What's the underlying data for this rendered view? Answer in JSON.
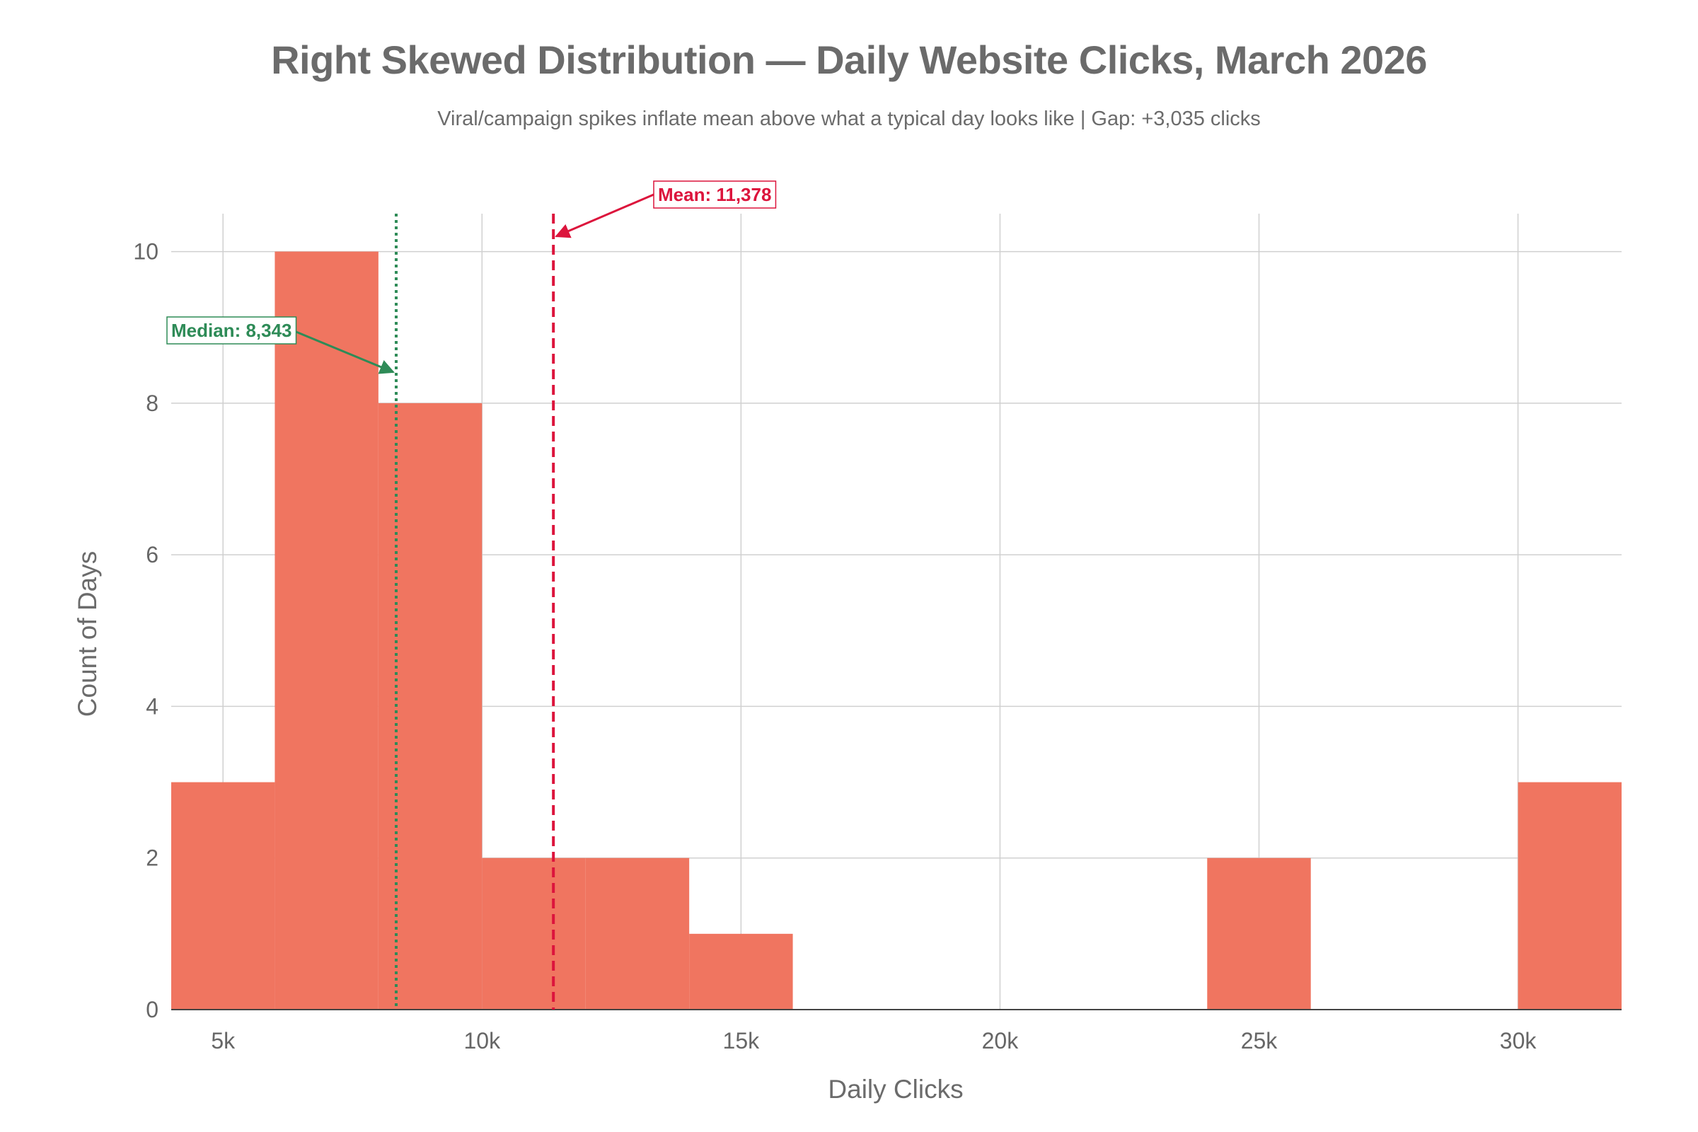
{
  "chart_data": {
    "type": "bar",
    "title": "Right Skewed Distribution — Daily Website Clicks, March 2026",
    "subtitle": "Viral/campaign spikes inflate mean above what a typical day looks like | Gap: +3,035 clicks",
    "xlabel": "Daily Clicks",
    "ylabel": "Count of Days",
    "xlim": [
      4000,
      32000
    ],
    "ylim": [
      0,
      10.5
    ],
    "xticks": [
      {
        "value": 5000,
        "label": "5k"
      },
      {
        "value": 10000,
        "label": "10k"
      },
      {
        "value": 15000,
        "label": "15k"
      },
      {
        "value": 20000,
        "label": "20k"
      },
      {
        "value": 25000,
        "label": "25k"
      },
      {
        "value": 30000,
        "label": "30k"
      }
    ],
    "yticks": [
      {
        "value": 0,
        "label": "0"
      },
      {
        "value": 2,
        "label": "2"
      },
      {
        "value": 4,
        "label": "4"
      },
      {
        "value": 6,
        "label": "6"
      },
      {
        "value": 8,
        "label": "8"
      },
      {
        "value": 10,
        "label": "10"
      }
    ],
    "bins": [
      {
        "start": 4000,
        "end": 6000,
        "count": 3
      },
      {
        "start": 6000,
        "end": 8000,
        "count": 10
      },
      {
        "start": 8000,
        "end": 10000,
        "count": 8
      },
      {
        "start": 10000,
        "end": 12000,
        "count": 2
      },
      {
        "start": 12000,
        "end": 14000,
        "count": 2
      },
      {
        "start": 14000,
        "end": 16000,
        "count": 1
      },
      {
        "start": 24000,
        "end": 26000,
        "count": 2
      },
      {
        "start": 30000,
        "end": 32000,
        "count": 3
      }
    ],
    "reference_lines": [
      {
        "name": "median",
        "value": 8343,
        "label": "Median: 8,343",
        "color": "#2e8b57",
        "style": "dotted"
      },
      {
        "name": "mean",
        "value": 11378,
        "label": "Mean: 11,378",
        "color": "#dc143c",
        "style": "dashed"
      }
    ],
    "bar_color": "#f07560",
    "grid": true,
    "legend": "none"
  }
}
